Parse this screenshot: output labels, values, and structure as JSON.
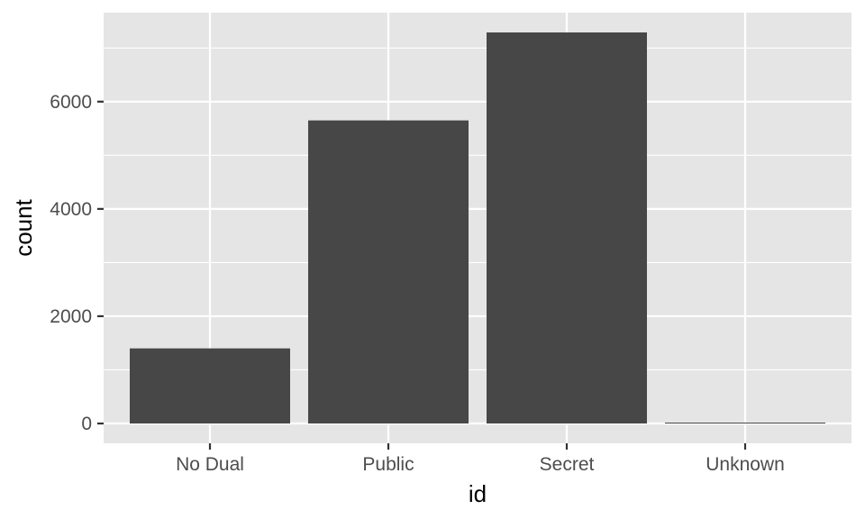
{
  "chart_data": {
    "type": "bar",
    "title": "",
    "xlabel": "id",
    "ylabel": "count",
    "categories": [
      "No Dual",
      "Public",
      "Secret",
      "Unknown"
    ],
    "values": [
      1400,
      5650,
      7290,
      5
    ],
    "ylim": [
      0,
      7650
    ],
    "yticks": [
      0,
      2000,
      4000,
      6000
    ],
    "ytick_labels": [
      "0",
      "2000",
      "4000",
      "6000"
    ],
    "grid": true,
    "legend": "none",
    "colors": {
      "bar": "#474747",
      "panel_background": "#e5e5e5",
      "grid": "#ffffff"
    }
  }
}
